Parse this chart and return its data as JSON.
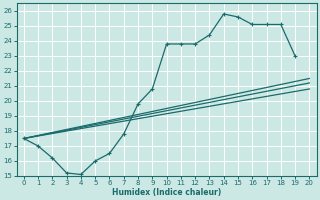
{
  "xlabel": "Humidex (Indice chaleur)",
  "background_color": "#cce8e4",
  "grid_color": "#ffffff",
  "line_color": "#1a6b6b",
  "xlim": [
    -0.5,
    20.5
  ],
  "ylim": [
    15,
    26.5
  ],
  "xticks": [
    0,
    1,
    2,
    3,
    4,
    5,
    6,
    7,
    8,
    9,
    10,
    11,
    12,
    13,
    14,
    15,
    16,
    17,
    18,
    19,
    20
  ],
  "yticks": [
    15,
    16,
    17,
    18,
    19,
    20,
    21,
    22,
    23,
    24,
    25,
    26
  ],
  "main_curve": {
    "x": [
      0,
      1,
      2,
      3,
      4,
      5,
      6,
      7,
      8,
      9,
      10,
      11,
      12,
      13,
      14,
      15,
      16,
      17,
      18,
      19
    ],
    "y": [
      17.5,
      17.0,
      16.2,
      15.2,
      15.1,
      16.0,
      16.5,
      17.8,
      19.8,
      20.8,
      23.8,
      23.8,
      23.8,
      24.4,
      25.8,
      25.6,
      25.1,
      25.1,
      25.1,
      23.0
    ]
  },
  "straight_lines": [
    {
      "x0": 0,
      "y0": 17.5,
      "x1": 20,
      "y1": 21.2
    },
    {
      "x0": 0,
      "y0": 17.5,
      "x1": 20,
      "y1": 20.8
    },
    {
      "x0": 0,
      "y0": 17.5,
      "x1": 20,
      "y1": 21.5
    }
  ]
}
